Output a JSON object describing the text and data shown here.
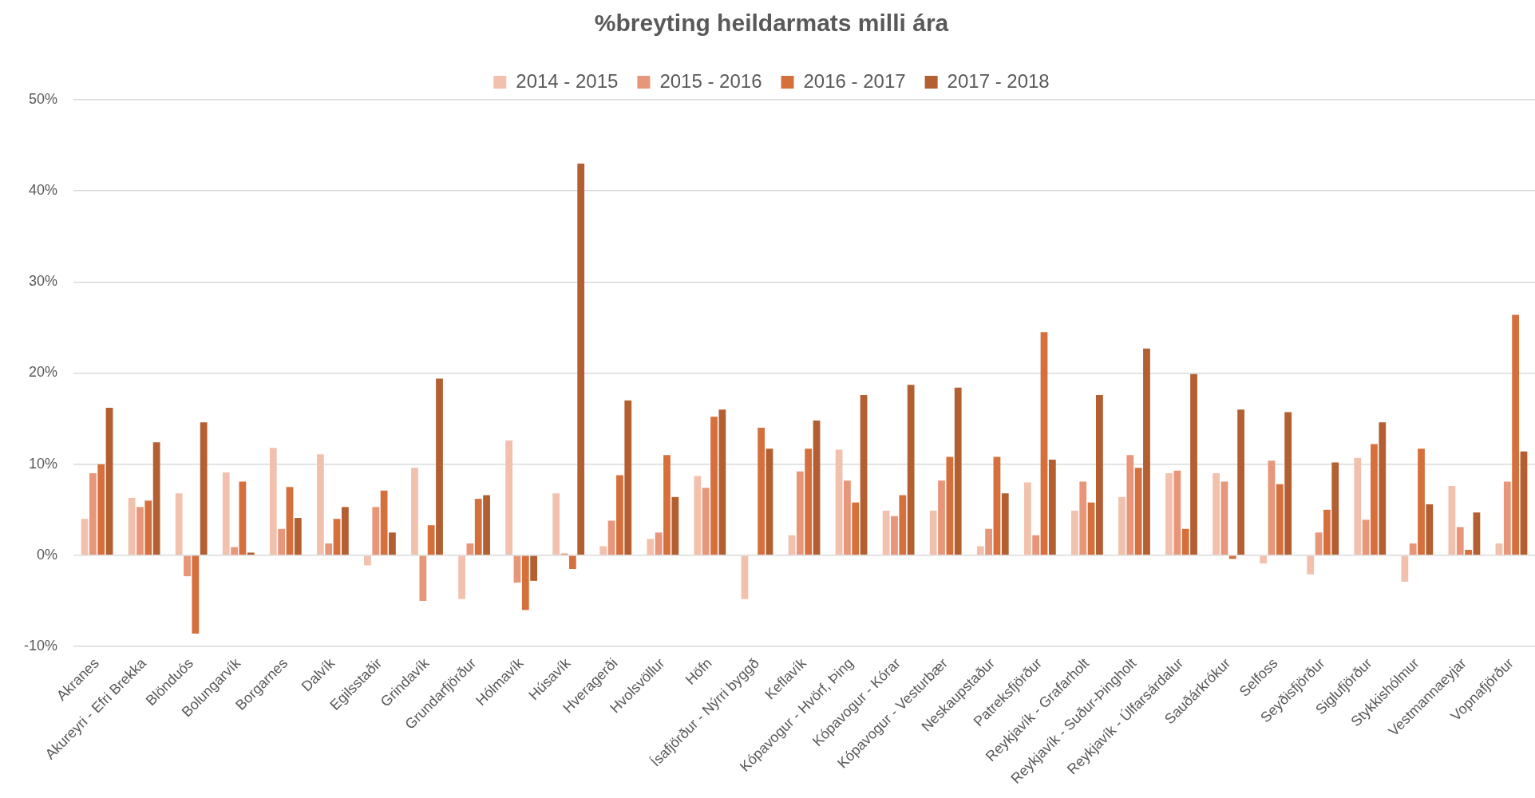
{
  "chart_data": {
    "type": "bar",
    "title": "%breyting heildarmats milli ára",
    "categories": [
      "Akranes",
      "Akureyri - Efri Brekka",
      "Blönduós",
      "Bolungarvík",
      "Borgarnes",
      "Dalvík",
      "Egilsstaðir",
      "Grindavík",
      "Grundarfjörður",
      "Hólmavík",
      "Húsavík",
      "Hveragerði",
      "Hvolsvöllur",
      "Höfn",
      "Ísafjörður - Nýrri byggð",
      "Keflavík",
      "Kópavogur - Hvörf, Þing",
      "Kópavogur - Kórar",
      "Kópavogur - Vesturbær",
      "Neskaupstaður",
      "Patreksfjörður",
      "Reykjavík - Grafarholt",
      "Reykjavík - Suður-Þingholt",
      "Reykjavík - Úlfarsárdalur",
      "Sauðárkrókur",
      "Selfoss",
      "Seyðisfjörður",
      "Siglufjörður",
      "Stykkishólmur",
      "Vestmannaeyjar",
      "Vopnafjörður"
    ],
    "series": [
      {
        "name": "2014 - 2015",
        "color": "#f2c1ad",
        "values": [
          4.0,
          6.3,
          6.8,
          9.1,
          11.8,
          11.1,
          -1.1,
          9.6,
          -4.8,
          12.6,
          6.8,
          1.0,
          1.8,
          8.7,
          -4.8,
          2.2,
          11.6,
          4.9,
          4.9,
          1.0,
          8.0,
          4.9,
          6.4,
          9.0,
          9.0,
          -0.9,
          -2.1,
          10.7,
          -2.9,
          7.6,
          1.3
        ]
      },
      {
        "name": "2015 - 2016",
        "color": "#e8967a",
        "values": [
          9.0,
          5.3,
          -2.3,
          0.9,
          2.9,
          1.3,
          5.3,
          -5.0,
          1.3,
          -3.0,
          0.2,
          3.8,
          2.5,
          7.4,
          null,
          9.2,
          8.2,
          4.3,
          8.2,
          2.9,
          2.2,
          8.1,
          11.0,
          9.3,
          8.1,
          10.4,
          2.5,
          3.9,
          1.3,
          3.1,
          8.1
        ]
      },
      {
        "name": "2016 - 2017",
        "color": "#d5703c",
        "values": [
          10.0,
          6.0,
          -8.6,
          8.1,
          7.5,
          4.0,
          7.1,
          3.3,
          6.2,
          -6.0,
          -1.5,
          8.8,
          11.0,
          15.2,
          14.0,
          11.7,
          5.8,
          6.6,
          10.8,
          10.8,
          24.5,
          5.8,
          9.6,
          2.9,
          -0.4,
          7.8,
          5.0,
          12.2,
          11.7,
          0.6,
          26.4
        ]
      },
      {
        "name": "2017 - 2018",
        "color": "#b35f31",
        "values": [
          16.2,
          12.4,
          14.6,
          0.3,
          4.1,
          5.3,
          2.5,
          19.4,
          6.6,
          -2.8,
          43.0,
          17.0,
          6.4,
          16.0,
          11.7,
          14.8,
          17.6,
          18.7,
          18.4,
          6.8,
          10.5,
          17.6,
          22.7,
          19.9,
          16.0,
          15.7,
          10.2,
          14.6,
          5.6,
          4.7,
          11.4
        ]
      }
    ],
    "ylim": [
      -10,
      50
    ],
    "yticks": [
      {
        "value": -10,
        "label": "-10%"
      },
      {
        "value": 0,
        "label": "0%"
      },
      {
        "value": 10,
        "label": "10%"
      },
      {
        "value": 20,
        "label": "20%"
      },
      {
        "value": 30,
        "label": "30%"
      },
      {
        "value": 40,
        "label": "40%"
      },
      {
        "value": 50,
        "label": "50%"
      }
    ],
    "grid": "y",
    "legend": "top"
  }
}
